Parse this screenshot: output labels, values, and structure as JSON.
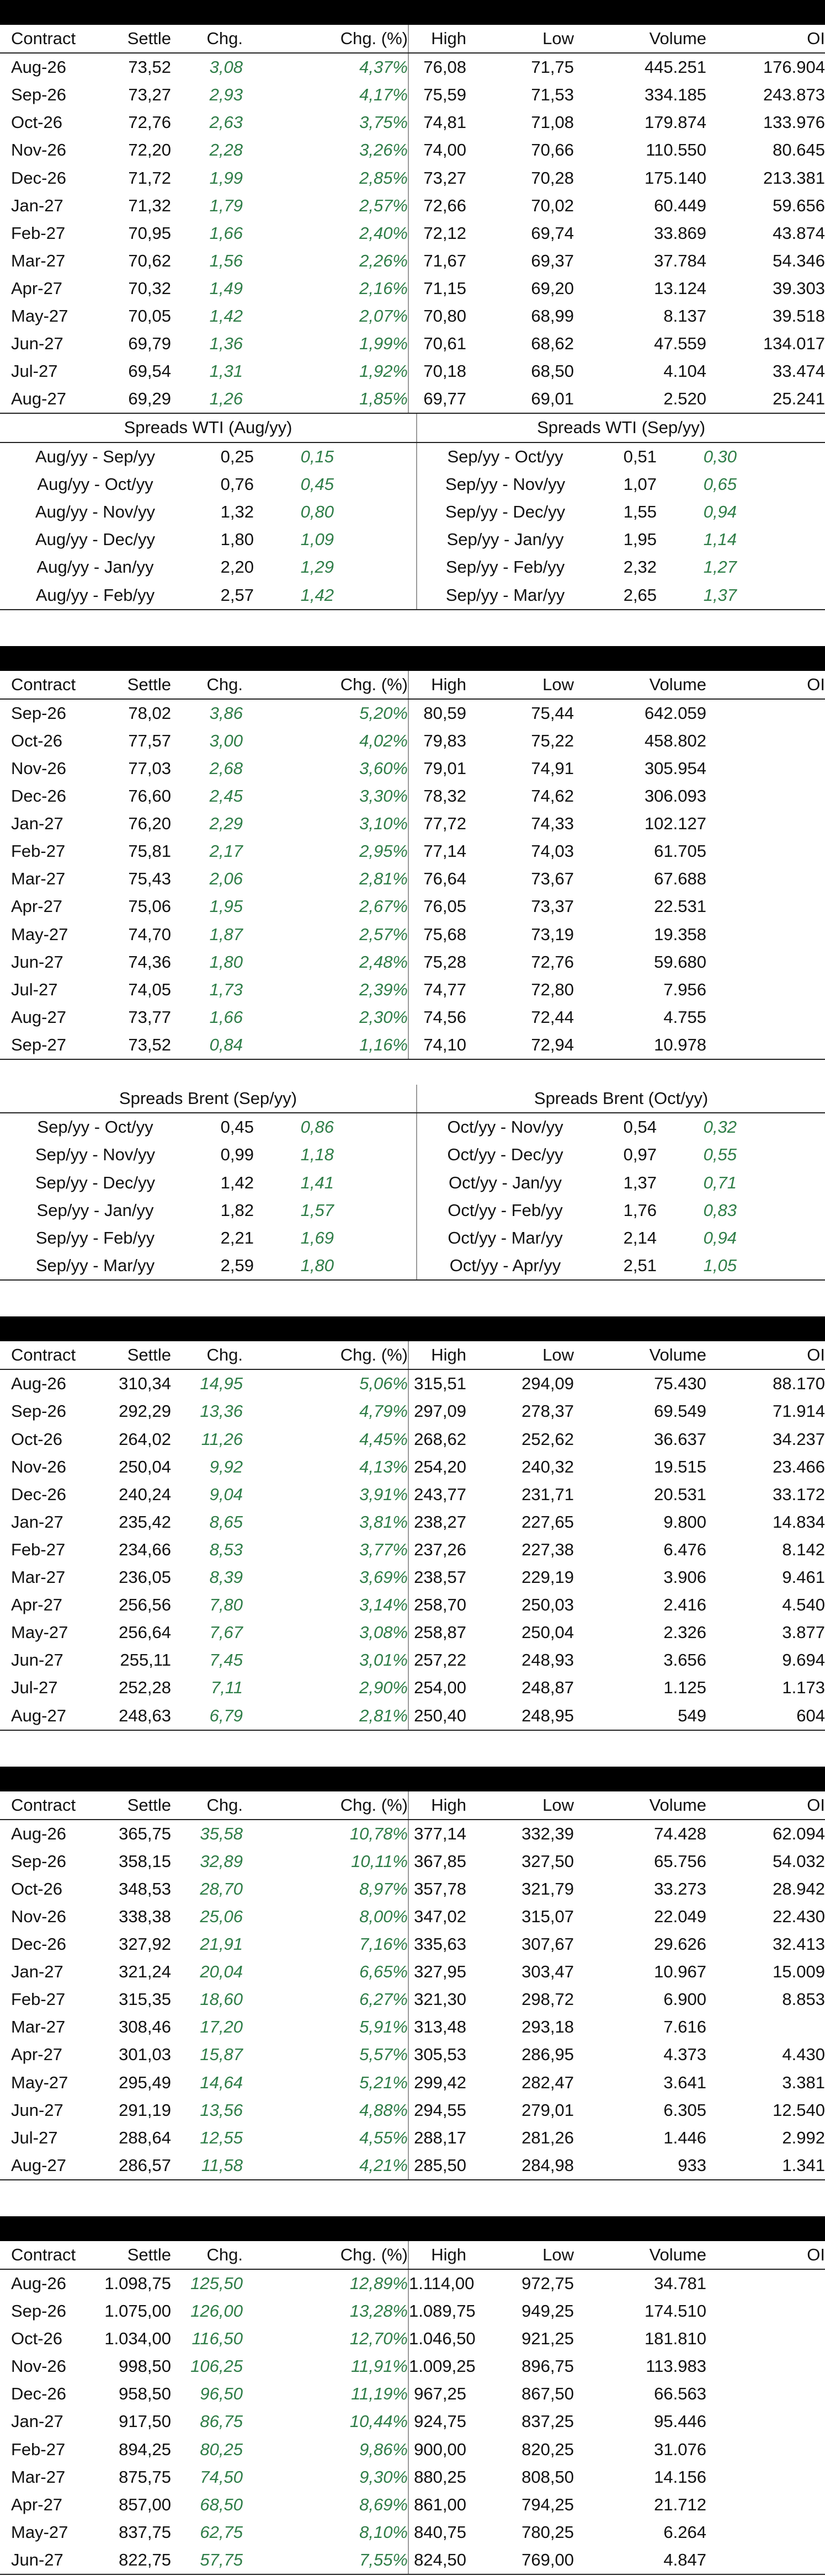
{
  "headers": [
    "Contract",
    "Settle",
    "Chg.",
    "Chg. (%)",
    "High",
    "Low",
    "Volume",
    "OI"
  ],
  "wti": {
    "rows": [
      [
        "Aug-26",
        "73,52",
        "3,08",
        "4,37%",
        "76,08",
        "71,75",
        "445.251",
        "176.904"
      ],
      [
        "Sep-26",
        "73,27",
        "2,93",
        "4,17%",
        "75,59",
        "71,53",
        "334.185",
        "243.873"
      ],
      [
        "Oct-26",
        "72,76",
        "2,63",
        "3,75%",
        "74,81",
        "71,08",
        "179.874",
        "133.976"
      ],
      [
        "Nov-26",
        "72,20",
        "2,28",
        "3,26%",
        "74,00",
        "70,66",
        "110.550",
        "80.645"
      ],
      [
        "Dec-26",
        "71,72",
        "1,99",
        "2,85%",
        "73,27",
        "70,28",
        "175.140",
        "213.381"
      ],
      [
        "Jan-27",
        "71,32",
        "1,79",
        "2,57%",
        "72,66",
        "70,02",
        "60.449",
        "59.656"
      ],
      [
        "Feb-27",
        "70,95",
        "1,66",
        "2,40%",
        "72,12",
        "69,74",
        "33.869",
        "43.874"
      ],
      [
        "Mar-27",
        "70,62",
        "1,56",
        "2,26%",
        "71,67",
        "69,37",
        "37.784",
        "54.346"
      ],
      [
        "Apr-27",
        "70,32",
        "1,49",
        "2,16%",
        "71,15",
        "69,20",
        "13.124",
        "39.303"
      ],
      [
        "May-27",
        "70,05",
        "1,42",
        "2,07%",
        "70,80",
        "68,99",
        "8.137",
        "39.518"
      ],
      [
        "Jun-27",
        "69,79",
        "1,36",
        "1,99%",
        "70,61",
        "68,62",
        "47.559",
        "134.017"
      ],
      [
        "Jul-27",
        "69,54",
        "1,31",
        "1,92%",
        "70,18",
        "68,50",
        "4.104",
        "33.474"
      ],
      [
        "Aug-27",
        "69,29",
        "1,26",
        "1,85%",
        "69,77",
        "69,01",
        "2.520",
        "25.241"
      ]
    ],
    "spreads": {
      "left_title": "Spreads WTI (Aug/yy)",
      "right_title": "Spreads WTI (Sep/yy)",
      "rows": [
        [
          "Aug/yy - Sep/yy",
          "0,25",
          "0,15",
          "Sep/yy - Oct/yy",
          "0,51",
          "0,30"
        ],
        [
          "Aug/yy - Oct/yy",
          "0,76",
          "0,45",
          "Sep/yy - Nov/yy",
          "1,07",
          "0,65"
        ],
        [
          "Aug/yy - Nov/yy",
          "1,32",
          "0,80",
          "Sep/yy - Dec/yy",
          "1,55",
          "0,94"
        ],
        [
          "Aug/yy - Dec/yy",
          "1,80",
          "1,09",
          "Sep/yy - Jan/yy",
          "1,95",
          "1,14"
        ],
        [
          "Aug/yy - Jan/yy",
          "2,20",
          "1,29",
          "Sep/yy - Feb/yy",
          "2,32",
          "1,27"
        ],
        [
          "Aug/yy - Feb/yy",
          "2,57",
          "1,42",
          "Sep/yy - Mar/yy",
          "2,65",
          "1,37"
        ]
      ]
    }
  },
  "brent": {
    "rows": [
      [
        "Sep-26",
        "78,02",
        "3,86",
        "5,20%",
        "80,59",
        "75,44",
        "642.059",
        ""
      ],
      [
        "Oct-26",
        "77,57",
        "3,00",
        "4,02%",
        "79,83",
        "75,22",
        "458.802",
        ""
      ],
      [
        "Nov-26",
        "77,03",
        "2,68",
        "3,60%",
        "79,01",
        "74,91",
        "305.954",
        ""
      ],
      [
        "Dec-26",
        "76,60",
        "2,45",
        "3,30%",
        "78,32",
        "74,62",
        "306.093",
        ""
      ],
      [
        "Jan-27",
        "76,20",
        "2,29",
        "3,10%",
        "77,72",
        "74,33",
        "102.127",
        ""
      ],
      [
        "Feb-27",
        "75,81",
        "2,17",
        "2,95%",
        "77,14",
        "74,03",
        "61.705",
        ""
      ],
      [
        "Mar-27",
        "75,43",
        "2,06",
        "2,81%",
        "76,64",
        "73,67",
        "67.688",
        ""
      ],
      [
        "Apr-27",
        "75,06",
        "1,95",
        "2,67%",
        "76,05",
        "73,37",
        "22.531",
        ""
      ],
      [
        "May-27",
        "74,70",
        "1,87",
        "2,57%",
        "75,68",
        "73,19",
        "19.358",
        ""
      ],
      [
        "Jun-27",
        "74,36",
        "1,80",
        "2,48%",
        "75,28",
        "72,76",
        "59.680",
        ""
      ],
      [
        "Jul-27",
        "74,05",
        "1,73",
        "2,39%",
        "74,77",
        "72,80",
        "7.956",
        ""
      ],
      [
        "Aug-27",
        "73,77",
        "1,66",
        "2,30%",
        "74,56",
        "72,44",
        "4.755",
        ""
      ],
      [
        "Sep-27",
        "73,52",
        "0,84",
        "1,16%",
        "74,10",
        "72,94",
        "10.978",
        ""
      ]
    ],
    "spreads": {
      "left_title": "Spreads Brent (Sep/yy)",
      "right_title": "Spreads Brent (Oct/yy)",
      "rows": [
        [
          "Sep/yy - Oct/yy",
          "0,45",
          "0,86",
          "Oct/yy - Nov/yy",
          "0,54",
          "0,32"
        ],
        [
          "Sep/yy - Nov/yy",
          "0,99",
          "1,18",
          "Oct/yy - Dec/yy",
          "0,97",
          "0,55"
        ],
        [
          "Sep/yy - Dec/yy",
          "1,42",
          "1,41",
          "Oct/yy - Jan/yy",
          "1,37",
          "0,71"
        ],
        [
          "Sep/yy - Jan/yy",
          "1,82",
          "1,57",
          "Oct/yy - Feb/yy",
          "1,76",
          "0,83"
        ],
        [
          "Sep/yy - Feb/yy",
          "2,21",
          "1,69",
          "Oct/yy - Mar/yy",
          "2,14",
          "0,94"
        ],
        [
          "Sep/yy - Mar/yy",
          "2,59",
          "1,80",
          "Oct/yy - Apr/yy",
          "2,51",
          "1,05"
        ]
      ]
    }
  },
  "table3": {
    "rows": [
      [
        "Aug-26",
        "310,34",
        "14,95",
        "5,06%",
        "315,51",
        "294,09",
        "75.430",
        "88.170"
      ],
      [
        "Sep-26",
        "292,29",
        "13,36",
        "4,79%",
        "297,09",
        "278,37",
        "69.549",
        "71.914"
      ],
      [
        "Oct-26",
        "264,02",
        "11,26",
        "4,45%",
        "268,62",
        "252,62",
        "36.637",
        "34.237"
      ],
      [
        "Nov-26",
        "250,04",
        "9,92",
        "4,13%",
        "254,20",
        "240,32",
        "19.515",
        "23.466"
      ],
      [
        "Dec-26",
        "240,24",
        "9,04",
        "3,91%",
        "243,77",
        "231,71",
        "20.531",
        "33.172"
      ],
      [
        "Jan-27",
        "235,42",
        "8,65",
        "3,81%",
        "238,27",
        "227,65",
        "9.800",
        "14.834"
      ],
      [
        "Feb-27",
        "234,66",
        "8,53",
        "3,77%",
        "237,26",
        "227,38",
        "6.476",
        "8.142"
      ],
      [
        "Mar-27",
        "236,05",
        "8,39",
        "3,69%",
        "238,57",
        "229,19",
        "3.906",
        "9.461"
      ],
      [
        "Apr-27",
        "256,56",
        "7,80",
        "3,14%",
        "258,70",
        "250,03",
        "2.416",
        "4.540"
      ],
      [
        "May-27",
        "256,64",
        "7,67",
        "3,08%",
        "258,87",
        "250,04",
        "2.326",
        "3.877"
      ],
      [
        "Jun-27",
        "255,11",
        "7,45",
        "3,01%",
        "257,22",
        "248,93",
        "3.656",
        "9.694"
      ],
      [
        "Jul-27",
        "252,28",
        "7,11",
        "2,90%",
        "254,00",
        "248,87",
        "1.125",
        "1.173"
      ],
      [
        "Aug-27",
        "248,63",
        "6,79",
        "2,81%",
        "250,40",
        "248,95",
        "549",
        "604"
      ]
    ]
  },
  "table4": {
    "rows": [
      [
        "Aug-26",
        "365,75",
        "35,58",
        "10,78%",
        "377,14",
        "332,39",
        "74.428",
        "62.094"
      ],
      [
        "Sep-26",
        "358,15",
        "32,89",
        "10,11%",
        "367,85",
        "327,50",
        "65.756",
        "54.032"
      ],
      [
        "Oct-26",
        "348,53",
        "28,70",
        "8,97%",
        "357,78",
        "321,79",
        "33.273",
        "28.942"
      ],
      [
        "Nov-26",
        "338,38",
        "25,06",
        "8,00%",
        "347,02",
        "315,07",
        "22.049",
        "22.430"
      ],
      [
        "Dec-26",
        "327,92",
        "21,91",
        "7,16%",
        "335,63",
        "307,67",
        "29.626",
        "32.413"
      ],
      [
        "Jan-27",
        "321,24",
        "20,04",
        "6,65%",
        "327,95",
        "303,47",
        "10.967",
        "15.009"
      ],
      [
        "Feb-27",
        "315,35",
        "18,60",
        "6,27%",
        "321,30",
        "298,72",
        "6.900",
        "8.853"
      ],
      [
        "Mar-27",
        "308,46",
        "17,20",
        "5,91%",
        "313,48",
        "293,18",
        "7.616",
        ""
      ],
      [
        "Apr-27",
        "301,03",
        "15,87",
        "5,57%",
        "305,53",
        "286,95",
        "4.373",
        "4.430"
      ],
      [
        "May-27",
        "295,49",
        "14,64",
        "5,21%",
        "299,42",
        "282,47",
        "3.641",
        "3.381"
      ],
      [
        "Jun-27",
        "291,19",
        "13,56",
        "4,88%",
        "294,55",
        "279,01",
        "6.305",
        "12.540"
      ],
      [
        "Jul-27",
        "288,64",
        "12,55",
        "4,55%",
        "288,17",
        "281,26",
        "1.446",
        "2.992"
      ],
      [
        "Aug-27",
        "286,57",
        "11,58",
        "4,21%",
        "285,50",
        "284,98",
        "933",
        "1.341"
      ]
    ]
  },
  "table5": {
    "rows": [
      [
        "Aug-26",
        "1.098,75",
        "125,50",
        "12,89%",
        "1.114,00",
        "972,75",
        "34.781",
        ""
      ],
      [
        "Sep-26",
        "1.075,00",
        "126,00",
        "13,28%",
        "1.089,75",
        "949,25",
        "174.510",
        ""
      ],
      [
        "Oct-26",
        "1.034,00",
        "116,50",
        "12,70%",
        "1.046,50",
        "921,25",
        "181.810",
        ""
      ],
      [
        "Nov-26",
        "998,50",
        "106,25",
        "11,91%",
        "1.009,25",
        "896,75",
        "113.983",
        ""
      ],
      [
        "Dec-26",
        "958,50",
        "96,50",
        "11,19%",
        "967,25",
        "867,50",
        "66.563",
        ""
      ],
      [
        "Jan-27",
        "917,50",
        "86,75",
        "10,44%",
        "924,75",
        "837,25",
        "95.446",
        ""
      ],
      [
        "Feb-27",
        "894,25",
        "80,25",
        "9,86%",
        "900,00",
        "820,25",
        "31.076",
        ""
      ],
      [
        "Mar-27",
        "875,75",
        "74,50",
        "9,30%",
        "880,25",
        "808,50",
        "14.156",
        ""
      ],
      [
        "Apr-27",
        "857,00",
        "68,50",
        "8,69%",
        "861,00",
        "794,25",
        "21.712",
        ""
      ],
      [
        "May-27",
        "837,75",
        "62,75",
        "8,10%",
        "840,75",
        "780,25",
        "6.264",
        ""
      ],
      [
        "Jun-27",
        "822,75",
        "57,75",
        "7,55%",
        "824,50",
        "769,00",
        "4.847",
        ""
      ]
    ]
  }
}
